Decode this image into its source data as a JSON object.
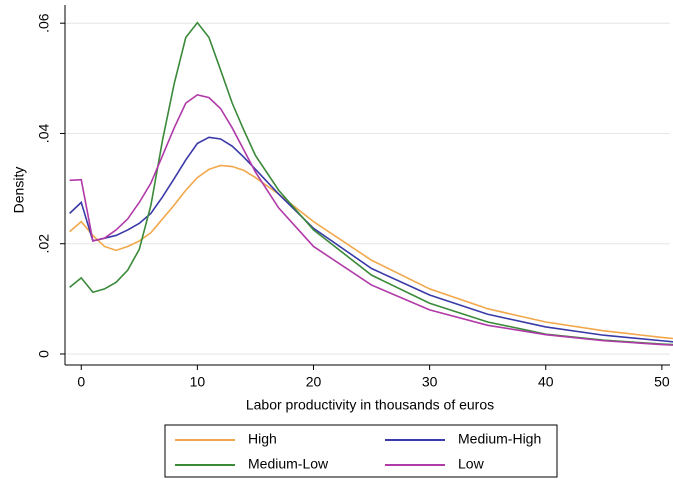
{
  "chart_data": {
    "type": "line",
    "x_label": "Labor productivity in thousands of euros",
    "y_label": "Density",
    "x": [
      -1,
      0,
      1,
      2,
      3,
      4,
      5,
      6,
      7,
      8,
      9,
      10,
      11,
      12,
      13,
      14,
      15,
      17,
      20,
      25,
      30,
      35,
      40,
      45,
      50,
      51
    ],
    "series": [
      {
        "name": "High",
        "color": "#f2a74a",
        "values": [
          0.0222,
          0.024,
          0.0215,
          0.0195,
          0.0188,
          0.0195,
          0.0205,
          0.022,
          0.0245,
          0.027,
          0.0297,
          0.032,
          0.0335,
          0.0342,
          0.034,
          0.0333,
          0.032,
          0.029,
          0.024,
          0.017,
          0.0118,
          0.0082,
          0.0058,
          0.0042,
          0.003,
          0.0028
        ]
      },
      {
        "name": "Medium-High",
        "color": "#3a3aa8",
        "values": [
          0.0255,
          0.0275,
          0.0205,
          0.021,
          0.0215,
          0.0225,
          0.0237,
          0.0255,
          0.0285,
          0.0318,
          0.0352,
          0.0382,
          0.0393,
          0.039,
          0.0377,
          0.0357,
          0.0335,
          0.029,
          0.0228,
          0.0155,
          0.0107,
          0.0072,
          0.0049,
          0.0034,
          0.0024,
          0.0022
        ]
      },
      {
        "name": "Medium-Low",
        "color": "#3a8a3a",
        "values": [
          0.0121,
          0.0138,
          0.0112,
          0.0118,
          0.013,
          0.0152,
          0.019,
          0.027,
          0.0388,
          0.049,
          0.0574,
          0.0601,
          0.0574,
          0.0515,
          0.0455,
          0.0406,
          0.036,
          0.0297,
          0.0225,
          0.0143,
          0.0092,
          0.0058,
          0.0036,
          0.0025,
          0.0018,
          0.0017
        ]
      },
      {
        "name": "Low",
        "color": "#b03aa8",
        "values": [
          0.0315,
          0.0316,
          0.0205,
          0.021,
          0.0225,
          0.0245,
          0.0275,
          0.031,
          0.036,
          0.041,
          0.0455,
          0.047,
          0.0465,
          0.0445,
          0.041,
          0.037,
          0.033,
          0.0265,
          0.0195,
          0.0125,
          0.008,
          0.0052,
          0.0035,
          0.0024,
          0.0017,
          0.0016
        ]
      }
    ],
    "xlim": [
      -1.4,
      50.7
    ],
    "ylim": [
      -0.002,
      0.0633
    ],
    "xticks": [
      0,
      10,
      20,
      30,
      40,
      50
    ],
    "yticks": [
      {
        "value": 0,
        "label": "0"
      },
      {
        "value": 0.02,
        "label": ".02"
      },
      {
        "value": 0.04,
        "label": ".04"
      },
      {
        "value": 0.06,
        "label": ".06"
      }
    ],
    "grid": true,
    "legend": "bottom"
  }
}
